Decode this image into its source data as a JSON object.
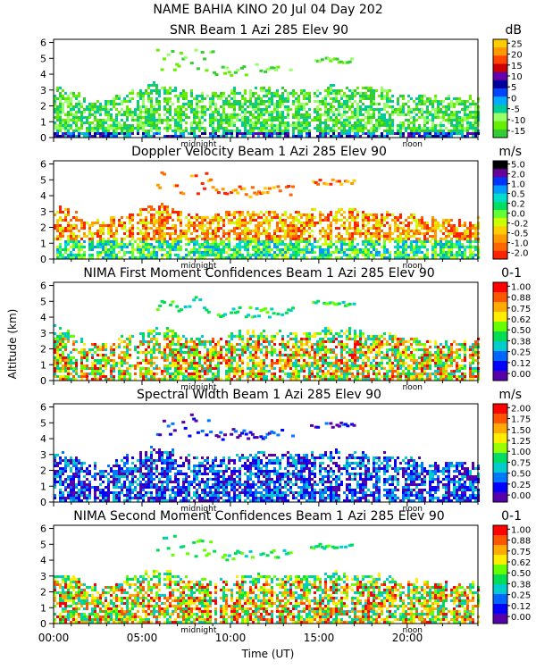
{
  "header": {
    "title": "NAME BAHIA KINO   20 Jul 04 Day 202"
  },
  "axes": {
    "ylabel": "Altitude (km)",
    "xlabel": "Time (UT)",
    "y_ticks": [
      "0",
      "1",
      "2",
      "3",
      "4",
      "5",
      "6"
    ],
    "x_ticks": [
      "00:00",
      "05:00",
      "10:00",
      "15:00",
      "20:00"
    ],
    "marker_midnight": "midnight",
    "marker_noon": "noon",
    "ylim": [
      0,
      6.2
    ],
    "xlim_hours": [
      0,
      24
    ]
  },
  "colors": {
    "snr": [
      "#33cc33",
      "#66ee00",
      "#99ff66",
      "#00cc99",
      "#00aaff",
      "#0044ff",
      "#000099",
      "#6600aa",
      "#cc0000",
      "#ff4400",
      "#ff9900",
      "#ffcc00"
    ],
    "velocity": [
      "#ff2200",
      "#ff6600",
      "#ff9900",
      "#ffcc00",
      "#ccff00",
      "#66ff33",
      "#00dd66",
      "#00ddcc",
      "#0099ff",
      "#0033ff",
      "#660099",
      "#000000"
    ],
    "confidence": [
      "#5500aa",
      "#0000ff",
      "#0066ff",
      "#00cccc",
      "#00dd55",
      "#66ff00",
      "#ffee00",
      "#ffaa00",
      "#ff5500",
      "#ff0000"
    ],
    "width": [
      "#5500aa",
      "#0000ff",
      "#0077ff",
      "#00cccc",
      "#00dd66",
      "#99ff00",
      "#ffee00",
      "#ffaa00",
      "#ff5500",
      "#ff0000"
    ]
  },
  "chart_data": [
    {
      "type": "heatmap",
      "title": "SNR Beam 1 Azi 285 Elev 90",
      "units": "dB",
      "colorbar_labels": [
        "25",
        "20",
        "15",
        "10",
        "5",
        "0",
        "-5",
        "-10",
        "-15"
      ],
      "color_key": "snr",
      "coverage_top_km": [
        3.4,
        3.0,
        2.4,
        2.5,
        2.9,
        3.2,
        3.6,
        3.2,
        2.9,
        2.8,
        3.0,
        3.1,
        3.1,
        3.1,
        3.0,
        3.2,
        3.3,
        3.2,
        3.1,
        3.0,
        2.8,
        2.7,
        2.6,
        2.6
      ],
      "elevated_layers": [
        {
          "hours": [
            5.8,
            9.0
          ],
          "km": [
            4.2,
            5.6
          ]
        },
        {
          "hours": [
            9.0,
            13.5
          ],
          "km": [
            4.0,
            4.7
          ]
        },
        {
          "hours": [
            14.5,
            17.0
          ],
          "km": [
            4.8,
            5.1
          ]
        }
      ]
    },
    {
      "type": "heatmap",
      "title": "Doppler Velocity Beam 1 Azi 285 Elev 90",
      "units": "m/s",
      "colorbar_labels": [
        "5.0",
        "2.0",
        "1.0",
        "0.5",
        "0.2",
        "0.0",
        "-0.2",
        "-0.5",
        "-1.0",
        "-2.0"
      ],
      "color_key": "velocity",
      "coverage_top_km": [
        3.4,
        3.0,
        2.4,
        2.5,
        2.9,
        3.2,
        3.6,
        3.2,
        2.9,
        2.8,
        3.0,
        3.1,
        3.1,
        3.1,
        3.0,
        3.2,
        3.3,
        3.2,
        3.1,
        3.0,
        2.8,
        2.7,
        2.6,
        2.6
      ],
      "elevated_layers": [
        {
          "hours": [
            5.8,
            9.0
          ],
          "km": [
            4.2,
            5.6
          ]
        },
        {
          "hours": [
            9.0,
            13.5
          ],
          "km": [
            4.0,
            4.7
          ]
        },
        {
          "hours": [
            14.5,
            17.0
          ],
          "km": [
            4.8,
            5.1
          ]
        }
      ]
    },
    {
      "type": "heatmap",
      "title": "NIMA First Moment Confidences Beam 1 Azi 285 Elev 90",
      "units": "0-1",
      "colorbar_labels": [
        "1.00",
        "0.88",
        "0.75",
        "0.62",
        "0.50",
        "0.38",
        "0.25",
        "0.12",
        "0.00"
      ],
      "color_key": "confidence",
      "coverage_top_km": [
        3.4,
        3.0,
        2.4,
        2.5,
        2.9,
        3.2,
        3.6,
        3.2,
        2.9,
        2.8,
        3.0,
        3.1,
        3.1,
        3.1,
        3.0,
        3.2,
        3.3,
        3.2,
        3.1,
        3.0,
        2.8,
        2.7,
        2.6,
        2.6
      ],
      "elevated_layers": [
        {
          "hours": [
            5.8,
            9.0
          ],
          "km": [
            4.2,
            5.6
          ]
        },
        {
          "hours": [
            9.0,
            13.5
          ],
          "km": [
            4.0,
            4.7
          ]
        },
        {
          "hours": [
            14.5,
            17.0
          ],
          "km": [
            4.8,
            5.1
          ]
        }
      ]
    },
    {
      "type": "heatmap",
      "title": "Spectral Width Beam 1 Azi 285 Elev 90",
      "units": "m/s",
      "colorbar_labels": [
        "2.00",
        "1.75",
        "1.50",
        "1.25",
        "1.00",
        "0.75",
        "0.50",
        "0.25",
        "0.00"
      ],
      "color_key": "width",
      "coverage_top_km": [
        3.4,
        3.0,
        2.4,
        2.5,
        2.9,
        3.2,
        3.6,
        3.2,
        2.9,
        2.8,
        3.0,
        3.1,
        3.1,
        3.1,
        3.0,
        3.2,
        3.3,
        3.2,
        3.1,
        3.0,
        2.8,
        2.7,
        2.6,
        2.6
      ],
      "elevated_layers": [
        {
          "hours": [
            5.8,
            9.0
          ],
          "km": [
            4.2,
            5.6
          ]
        },
        {
          "hours": [
            9.0,
            13.5
          ],
          "km": [
            4.0,
            4.7
          ]
        },
        {
          "hours": [
            14.5,
            17.0
          ],
          "km": [
            4.8,
            5.1
          ]
        }
      ]
    },
    {
      "type": "heatmap",
      "title": "NIMA Second Moment Confidences Beam 1 Azi 285 Elev 90",
      "units": "0-1",
      "colorbar_labels": [
        "1.00",
        "0.88",
        "0.75",
        "0.62",
        "0.50",
        "0.38",
        "0.25",
        "0.12",
        "0.00"
      ],
      "color_key": "confidence",
      "coverage_top_km": [
        3.4,
        3.0,
        2.4,
        2.5,
        2.9,
        3.2,
        3.6,
        3.2,
        2.9,
        2.8,
        3.0,
        3.1,
        3.1,
        3.1,
        3.0,
        3.2,
        3.3,
        3.2,
        3.1,
        3.0,
        2.8,
        2.7,
        2.6,
        2.6
      ],
      "elevated_layers": [
        {
          "hours": [
            5.8,
            9.0
          ],
          "km": [
            4.2,
            5.6
          ]
        },
        {
          "hours": [
            9.0,
            13.5
          ],
          "km": [
            4.0,
            4.7
          ]
        },
        {
          "hours": [
            14.5,
            17.0
          ],
          "km": [
            4.8,
            5.1
          ]
        }
      ]
    }
  ]
}
